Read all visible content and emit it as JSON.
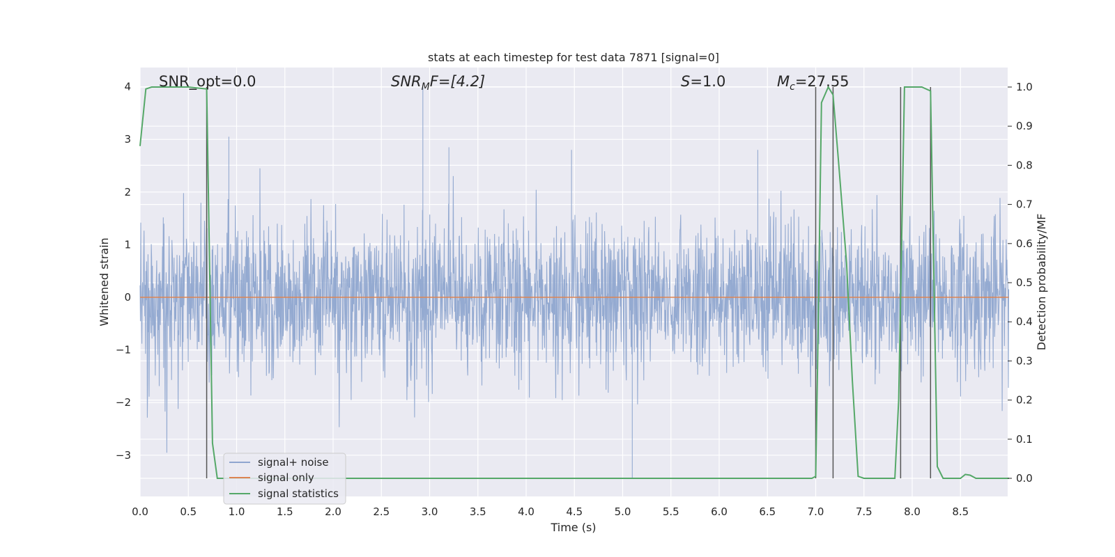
{
  "chart_data": {
    "type": "line",
    "title": "stats at each timestep for test data 7871 [signal=0]",
    "xlabel": "Time (s)",
    "ylabel_left": "Whitened strain",
    "ylabel_right": "Detection probability/MF",
    "xlim": [
      0.0,
      9.0
    ],
    "ylim_left": [
      -3.8,
      4.35
    ],
    "ylim_right": [
      -0.048,
      1.045
    ],
    "x_ticks": [
      "0.0",
      "0.5",
      "1.0",
      "1.5",
      "2.0",
      "2.5",
      "3.0",
      "3.5",
      "4.0",
      "4.5",
      "5.0",
      "5.5",
      "6.0",
      "6.5",
      "7.0",
      "7.5",
      "8.0",
      "8.5"
    ],
    "y_ticks_left": [
      "−3",
      "−2",
      "−1",
      "0",
      "1",
      "2",
      "3",
      "4"
    ],
    "y_ticks_right": [
      "0.0",
      "0.1",
      "0.2",
      "0.3",
      "0.4",
      "0.5",
      "0.6",
      "0.7",
      "0.8",
      "0.9",
      "1.0"
    ],
    "grid": true,
    "legend_placement": "lower-left",
    "annotations": {
      "snr_opt": "SNR_opt=0.0",
      "snr_mf_base": "SNR",
      "snr_mf_sub": "M",
      "snr_mf_tail": "F=[4.2]",
      "s_label_base": "S",
      "s_label_tail": "=1.0",
      "mc_base": "M",
      "mc_sub": "c",
      "mc_tail": "=27.55"
    },
    "series": [
      {
        "name": "signal+ noise",
        "color": "#8fa6cf",
        "description_stats": {
          "typical_range": [
            -1.2,
            1.2
          ],
          "max": 4.0,
          "min": -3.45
        }
      },
      {
        "name": "signal only",
        "color": "#dd8452",
        "constant_value": 0.0
      },
      {
        "name": "signal statistics",
        "color": "#55a868",
        "axis": "right",
        "points": [
          [
            0.0,
            0.85
          ],
          [
            0.06,
            0.995
          ],
          [
            0.12,
            1.0
          ],
          [
            0.3,
            1.0
          ],
          [
            0.5,
            1.0
          ],
          [
            0.69,
            0.995
          ],
          [
            0.72,
            0.55
          ],
          [
            0.75,
            0.09
          ],
          [
            0.8,
            0.0
          ],
          [
            1.0,
            0.0
          ],
          [
            6.5,
            0.0
          ],
          [
            6.96,
            0.0
          ],
          [
            7.0,
            0.005
          ],
          [
            7.02,
            0.3
          ],
          [
            7.06,
            0.96
          ],
          [
            7.13,
            1.0
          ],
          [
            7.18,
            0.98
          ],
          [
            7.24,
            0.8
          ],
          [
            7.32,
            0.55
          ],
          [
            7.38,
            0.25
          ],
          [
            7.44,
            0.005
          ],
          [
            7.5,
            0.0
          ],
          [
            7.82,
            0.0
          ],
          [
            7.86,
            0.2
          ],
          [
            7.92,
            1.0
          ],
          [
            8.1,
            1.0
          ],
          [
            8.19,
            0.99
          ],
          [
            8.26,
            0.03
          ],
          [
            8.32,
            0.0
          ],
          [
            8.5,
            0.0
          ],
          [
            8.55,
            0.01
          ],
          [
            8.6,
            0.008
          ],
          [
            8.66,
            0.0
          ],
          [
            9.0,
            0.0
          ]
        ]
      }
    ],
    "vertical_markers_x": [
      0.69,
      7.0,
      7.18,
      7.88,
      8.19
    ],
    "vertical_marker_color": "#555555"
  }
}
